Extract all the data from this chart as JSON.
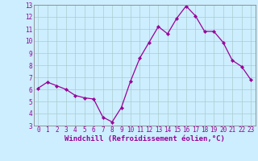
{
  "x": [
    0,
    1,
    2,
    3,
    4,
    5,
    6,
    7,
    8,
    9,
    10,
    11,
    12,
    13,
    14,
    15,
    16,
    17,
    18,
    19,
    20,
    21,
    22,
    23
  ],
  "y": [
    6.1,
    6.6,
    6.3,
    6.0,
    5.5,
    5.3,
    5.2,
    3.7,
    3.3,
    4.5,
    6.7,
    8.6,
    9.9,
    11.2,
    10.6,
    11.9,
    12.9,
    12.1,
    10.8,
    10.8,
    9.9,
    8.4,
    7.9,
    6.8
  ],
  "line_color": "#990099",
  "marker_color": "#990099",
  "bg_color": "#cceeff",
  "grid_color": "#aacccc",
  "xlabel": "Windchill (Refroidissement éolien,°C)",
  "xlim": [
    -0.5,
    23.5
  ],
  "ylim": [
    3,
    13
  ],
  "yticks": [
    3,
    4,
    5,
    6,
    7,
    8,
    9,
    10,
    11,
    12,
    13
  ],
  "xticks": [
    0,
    1,
    2,
    3,
    4,
    5,
    6,
    7,
    8,
    9,
    10,
    11,
    12,
    13,
    14,
    15,
    16,
    17,
    18,
    19,
    20,
    21,
    22,
    23
  ],
  "tick_fontsize": 5.5,
  "label_fontsize": 6.5
}
